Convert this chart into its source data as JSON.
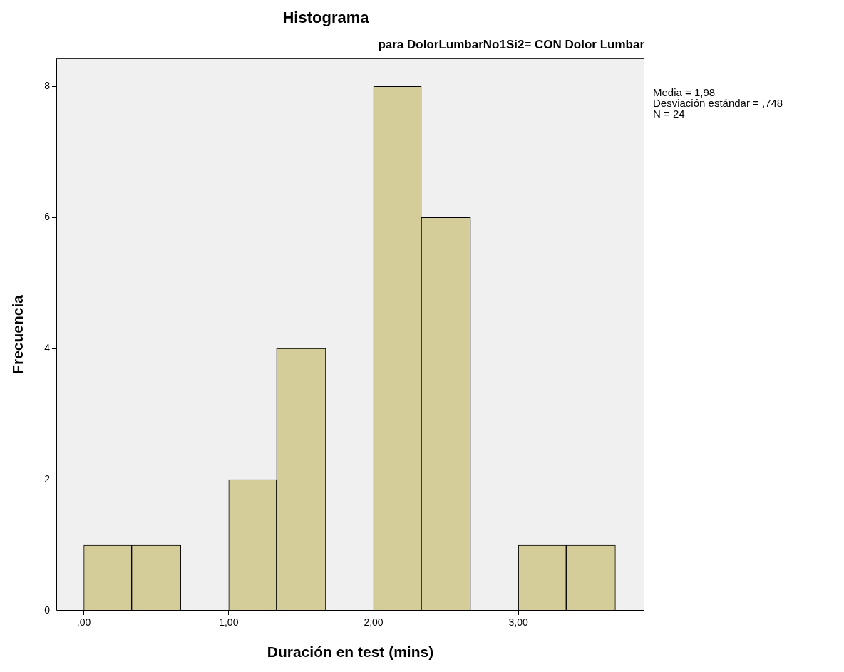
{
  "chart_data": {
    "type": "histogram",
    "title": "Histograma",
    "subtitle": "para DolorLumbarNo1Si2= CON Dolor Lumbar",
    "xlabel": "Duración en test (mins)",
    "ylabel": "Frecuencia",
    "bins": [
      0,
      0.33,
      0.67,
      1,
      1.33,
      1.67,
      2,
      2.33,
      2.67,
      3,
      3.33,
      3.67
    ],
    "values": [
      1,
      1,
      0,
      2,
      4,
      0,
      8,
      6,
      0,
      1,
      1
    ],
    "color": "#d4cc99",
    "xlim": [
      -0.19,
      3.87
    ],
    "xticks": [
      {
        "value": 0,
        "label": ",00"
      },
      {
        "value": 1,
        "label": "1,00"
      },
      {
        "value": 2,
        "label": "2,00"
      },
      {
        "value": 3,
        "label": "3,00"
      }
    ],
    "ylim": [
      0,
      8.43
    ],
    "yticks": [
      0,
      2,
      4,
      6,
      8
    ],
    "grid": false,
    "annotations": [
      "Media = 1,98",
      "Desviación estándar = ,748",
      "N = 24"
    ]
  }
}
